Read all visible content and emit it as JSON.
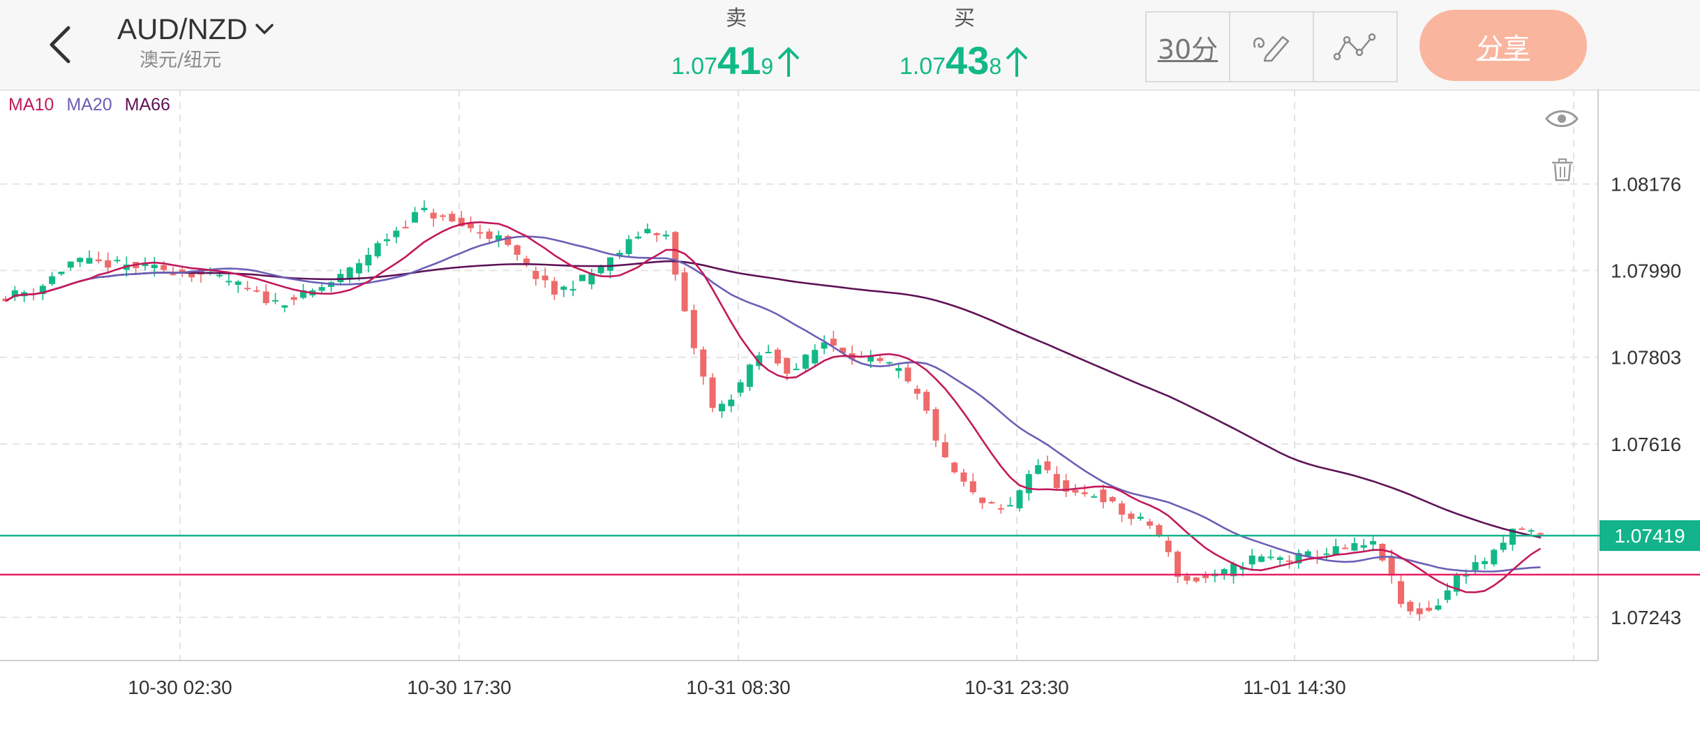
{
  "header": {
    "symbol": "AUD/NZD",
    "symbol_sub": "澳元/纽元",
    "sell": {
      "label": "卖",
      "price_prefix": "1.07",
      "price_big": "41",
      "price_small": "9"
    },
    "buy": {
      "label": "买",
      "price_prefix": "1.07",
      "price_big": "43",
      "price_small": "8"
    },
    "timeframe": "30分",
    "share_label": "分享"
  },
  "legend": {
    "ma10": "MA10",
    "ma20": "MA20",
    "ma66": "MA66"
  },
  "colors": {
    "up": "#13b887",
    "down": "#ef6a6a",
    "ma10": "#c2195b",
    "ma20": "#6a5fb5",
    "ma66": "#5e1257",
    "price_line": "#13b38b",
    "ref_line": "#e81e63"
  },
  "chart_data": {
    "type": "candlestick",
    "y_ticks": [
      "1.08176",
      "1.07990",
      "1.07803",
      "1.07616",
      "1.07243"
    ],
    "x_ticks": [
      "10-30 02:30",
      "10-30 17:30",
      "10-31 08:30",
      "10-31 23:30",
      "11-01 14:30"
    ],
    "ylim": [
      1.0715,
      1.0838
    ],
    "current_price": "1.07419",
    "reference_price": 1.07335
  }
}
